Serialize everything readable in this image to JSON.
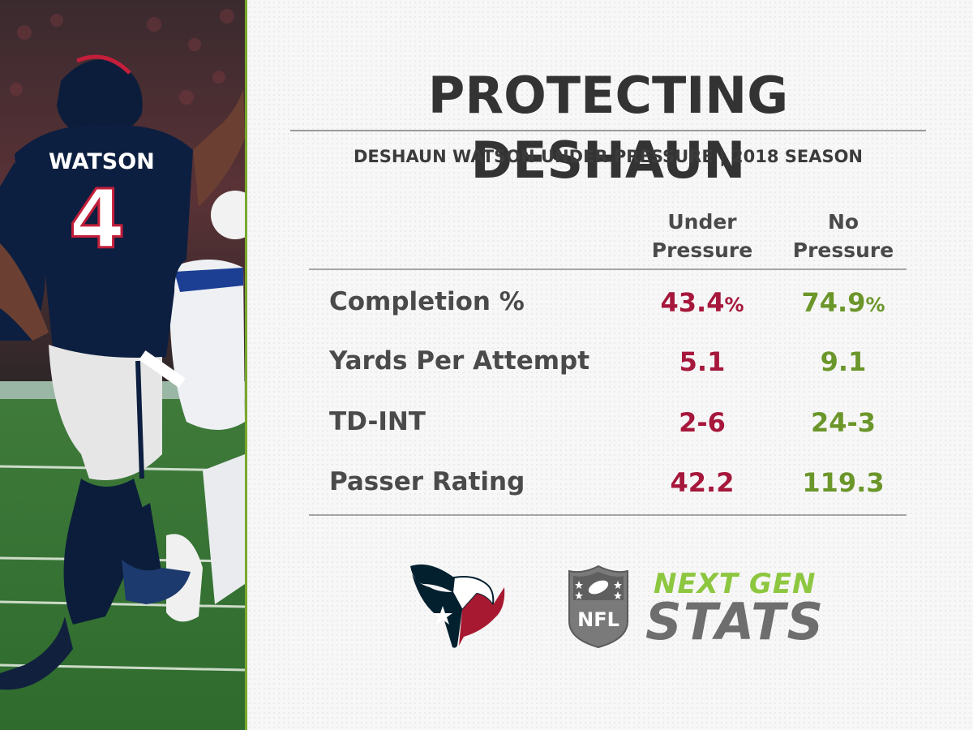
{
  "title": "PROTECTING DESHAUN",
  "subtitle": "DESHAUN WATSON UNDER PRESSURE | 2018 SEASON",
  "photo": {
    "jersey_name": "WATSON",
    "jersey_number": "4"
  },
  "columns": [
    {
      "line1": "Under",
      "line2": "Pressure"
    },
    {
      "line1": "No",
      "line2": "Pressure"
    }
  ],
  "rows": [
    {
      "label": "Completion %",
      "under": "43.4",
      "under_unit": "%",
      "no": "74.9",
      "no_unit": "%"
    },
    {
      "label": "Yards Per Attempt",
      "under": "5.1",
      "no": "9.1"
    },
    {
      "label": "TD-INT",
      "under": "2-6",
      "no": "24-3"
    },
    {
      "label": "Passer Rating",
      "under": "42.2",
      "no": "119.3"
    }
  ],
  "logos": {
    "nfl_shield_text": "NFL",
    "ngs_line1": "NEXT GEN",
    "ngs_line2": "STATS"
  },
  "colors": {
    "under_pressure": "#a6173b",
    "no_pressure": "#6b962a",
    "accent": "#79a82b",
    "texans_navy": "#03202f",
    "texans_red": "#a71930"
  }
}
